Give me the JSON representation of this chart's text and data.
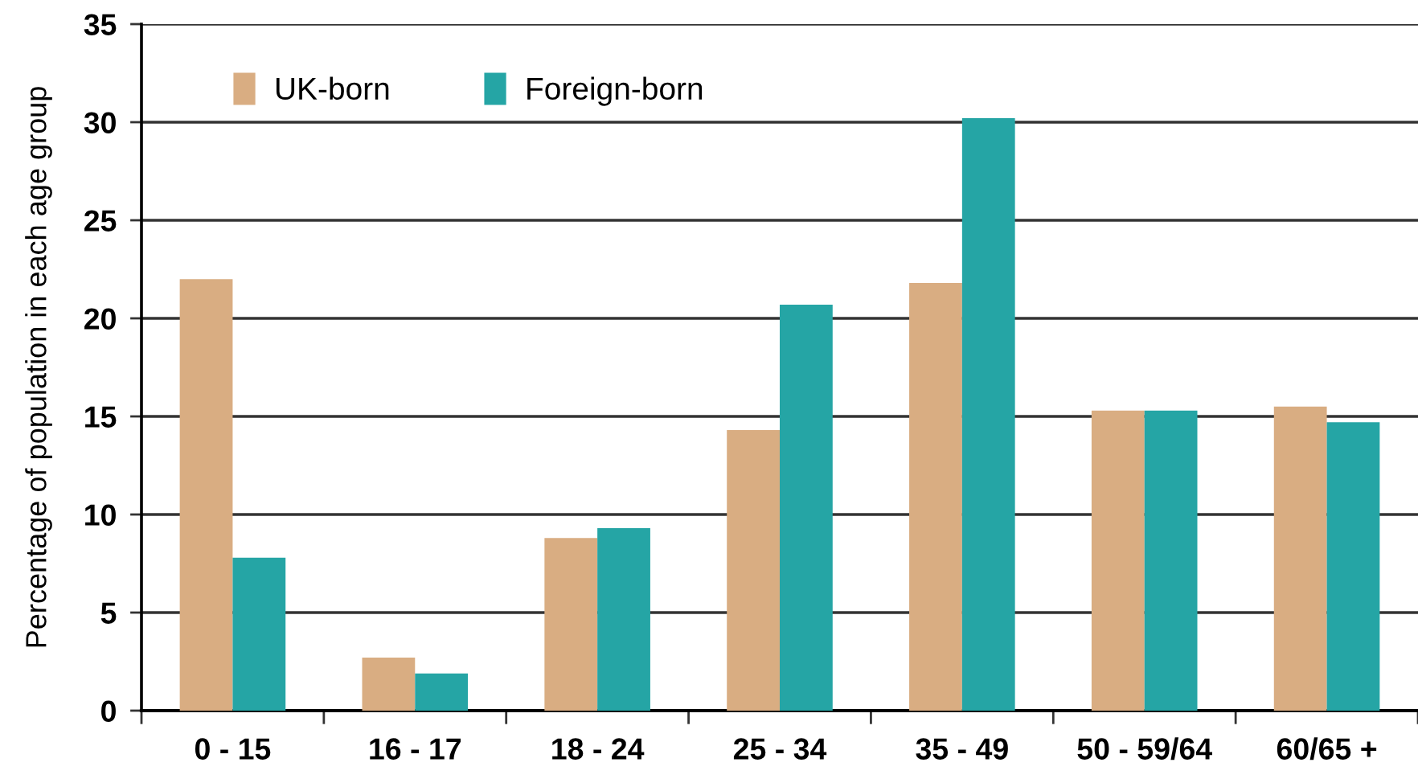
{
  "chart_data": {
    "type": "bar",
    "ylabel": "Percentage of population in each age group",
    "categories": [
      "0 - 15",
      "16 - 17",
      "18 - 24",
      "25 - 34",
      "35 - 49",
      "50 - 59/64",
      "60/65 +"
    ],
    "series": [
      {
        "name": "UK-born",
        "color": "#d9ad82",
        "values": [
          22.0,
          2.7,
          8.8,
          14.3,
          21.8,
          15.3,
          15.5
        ]
      },
      {
        "name": "Foreign-born",
        "color": "#25a5a5",
        "values": [
          7.8,
          1.9,
          9.3,
          20.7,
          30.2,
          15.3,
          14.7
        ]
      }
    ],
    "ylim": [
      0,
      35
    ],
    "yticks": [
      0,
      5,
      10,
      15,
      20,
      25,
      30,
      35
    ],
    "grid": "y",
    "legend": "top left"
  }
}
